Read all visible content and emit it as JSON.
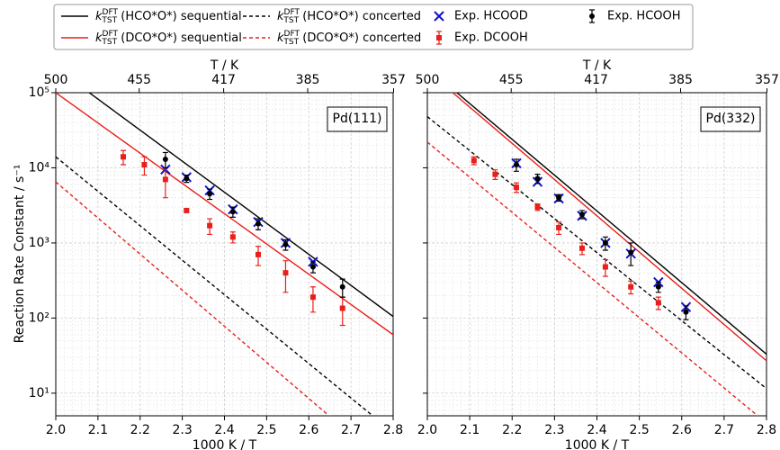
{
  "chart_data": [
    {
      "type": "scatter",
      "log_y": true,
      "grid": true,
      "minor_grid": true,
      "panel_label": "Pd(111)",
      "ylabel": "Reaction Rate Constant / s⁻¹",
      "xlabel": "1000 K / T",
      "x2label": "T / K",
      "xlim": [
        2.0,
        2.8
      ],
      "xticks": [
        {
          "value": 2.0,
          "label": "2.0"
        },
        2.1,
        2.2,
        2.3,
        2.4,
        2.5,
        2.6,
        2.7,
        2.8
      ],
      "x2ticks": [
        {
          "value": 2.0,
          "label": "500"
        },
        {
          "value": 2.1978,
          "label": "455"
        },
        {
          "value": 2.3981,
          "label": "417"
        },
        {
          "value": 2.5974,
          "label": "385"
        },
        {
          "value": 2.8011,
          "label": "357"
        }
      ],
      "ylim": [
        5,
        100000
      ],
      "yticks": [
        {
          "value": 10,
          "label": "10¹"
        },
        {
          "value": 100,
          "label": "10²"
        },
        {
          "value": 1000,
          "label": "10³"
        },
        {
          "value": 10000,
          "label": "10⁴"
        },
        {
          "value": 100000,
          "label": "10⁵"
        }
      ],
      "legend": "top",
      "series": [
        {
          "name": "k^DFT_TST (HCO*O*) sequential",
          "color": "#000000",
          "kind": "line",
          "dash": false,
          "x": [
            2.0,
            2.8
          ],
          "values": [
            213000,
            105
          ]
        },
        {
          "name": "k^DFT_TST (DCO*O*) sequential",
          "color": "#e8201c",
          "kind": "line",
          "dash": false,
          "x": [
            2.0,
            2.8
          ],
          "values": [
            100000,
            60
          ]
        },
        {
          "name": "k^DFT_TST (HCO*O*) concerted",
          "color": "#000000",
          "kind": "line",
          "dash": true,
          "x": [
            2.0,
            2.8
          ],
          "values": [
            14000,
            3
          ]
        },
        {
          "name": "k^DFT_TST (DCO*O*) concerted",
          "color": "#e8201c",
          "kind": "line",
          "dash": true,
          "x": [
            2.0,
            2.8
          ],
          "values": [
            6500,
            0.93
          ]
        },
        {
          "name": "Exp. HCOOD",
          "color": "#1010cc",
          "kind": "scatter",
          "marker": "x",
          "x": [
            2.26,
            2.31,
            2.365,
            2.42,
            2.48,
            2.545,
            2.61
          ],
          "values": [
            9500,
            7500,
            5000,
            2800,
            1900,
            1000,
            560
          ]
        },
        {
          "name": "Exp. DCOOH",
          "color": "#e8201c",
          "kind": "scatter",
          "marker": "square",
          "x": [
            2.16,
            2.21,
            2.26,
            2.31,
            2.365,
            2.42,
            2.48,
            2.545,
            2.61,
            2.68
          ],
          "values": [
            14000,
            11000,
            7000,
            2700,
            1700,
            1200,
            700,
            400,
            190,
            135
          ],
          "errors": [
            3000,
            3000,
            3000,
            150,
            400,
            200,
            200,
            180,
            70,
            55
          ]
        },
        {
          "name": "Exp. HCOOH",
          "color": "#000000",
          "kind": "scatter",
          "marker": "circle",
          "x": [
            2.26,
            2.31,
            2.365,
            2.42,
            2.48,
            2.545,
            2.61,
            2.68
          ],
          "values": [
            13000,
            7200,
            4500,
            2600,
            1800,
            950,
            480,
            260
          ],
          "errors": [
            3000,
            800,
            700,
            400,
            300,
            150,
            80,
            70
          ]
        }
      ]
    },
    {
      "type": "scatter",
      "log_y": true,
      "grid": true,
      "minor_grid": true,
      "panel_label": "Pd(332)",
      "xlabel": "1000 K / T",
      "x2label": "T / K",
      "xlim": [
        2.0,
        2.8
      ],
      "xticks": [
        {
          "value": 2.0,
          "label": "2.0"
        },
        2.1,
        2.2,
        2.3,
        2.4,
        2.5,
        2.6,
        2.7,
        2.8
      ],
      "x2ticks": [
        {
          "value": 2.0,
          "label": "500"
        },
        {
          "value": 2.1978,
          "label": "455"
        },
        {
          "value": 2.3981,
          "label": "417"
        },
        {
          "value": 2.5974,
          "label": "385"
        },
        {
          "value": 2.8011,
          "label": "357"
        }
      ],
      "ylim": [
        5,
        100000
      ],
      "yticks": [
        10,
        100,
        1000,
        10000,
        100000
      ],
      "series": [
        {
          "color": "#000000",
          "kind": "line",
          "dash": false,
          "x": [
            2.0,
            2.8
          ],
          "values": [
            215000,
            33
          ]
        },
        {
          "color": "#e8201c",
          "kind": "line",
          "dash": false,
          "x": [
            2.0,
            2.8
          ],
          "values": [
            195000,
            27
          ]
        },
        {
          "color": "#000000",
          "kind": "line",
          "dash": true,
          "x": [
            2.0,
            2.8
          ],
          "values": [
            48000,
            11.5
          ]
        },
        {
          "color": "#e8201c",
          "kind": "line",
          "dash": true,
          "x": [
            2.0,
            2.8
          ],
          "values": [
            22000,
            4
          ]
        },
        {
          "color": "#1010cc",
          "kind": "scatter",
          "marker": "x",
          "x": [
            2.21,
            2.26,
            2.31,
            2.365,
            2.42,
            2.48,
            2.545,
            2.61
          ],
          "values": [
            11500,
            6500,
            3900,
            2300,
            1000,
            720,
            300,
            140
          ]
        },
        {
          "color": "#e8201c",
          "kind": "scatter",
          "marker": "square",
          "x": [
            2.11,
            2.16,
            2.21,
            2.26,
            2.31,
            2.365,
            2.42,
            2.48,
            2.545
          ],
          "values": [
            12500,
            8200,
            5500,
            3000,
            1600,
            850,
            480,
            260,
            160
          ],
          "errors": [
            1500,
            1200,
            800,
            300,
            300,
            150,
            120,
            50,
            30
          ]
        },
        {
          "color": "#000000",
          "kind": "scatter",
          "marker": "circle",
          "x": [
            2.21,
            2.26,
            2.31,
            2.365,
            2.42,
            2.48,
            2.545,
            2.61
          ],
          "values": [
            11000,
            7200,
            4000,
            2400,
            1000,
            750,
            260,
            120
          ],
          "errors": [
            2000,
            1000,
            400,
            300,
            200,
            250,
            40,
            25
          ]
        }
      ]
    }
  ]
}
